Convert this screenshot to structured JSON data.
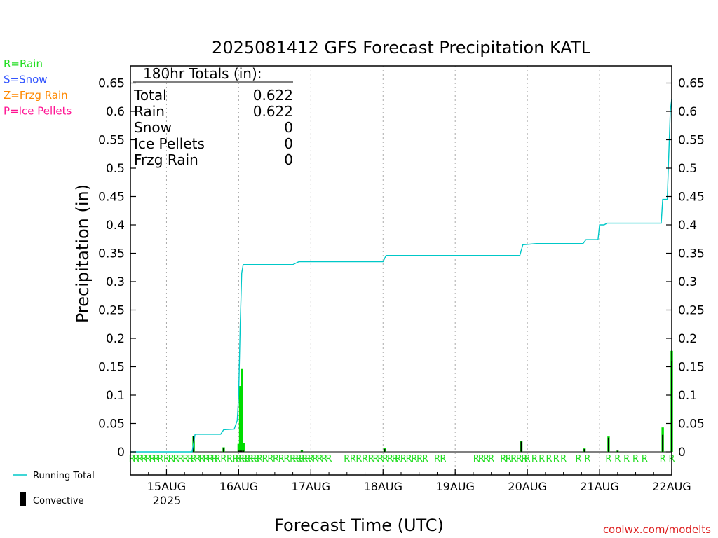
{
  "chart_data": {
    "type": "bar",
    "title": "2025081412 GFS Forecast Precipitation KATL",
    "xlabel": "Forecast Time (UTC)",
    "ylabel": "Precipitation (in)",
    "ylim": [
      0,
      0.68
    ],
    "yticks": [
      0,
      0.05,
      0.1,
      0.15,
      0.2,
      0.25,
      0.3,
      0.35,
      0.4,
      0.45,
      0.5,
      0.55,
      0.6,
      0.65
    ],
    "ytick_labels": [
      "0",
      "0.05",
      "0.1",
      "0.15",
      "0.2",
      "0.25",
      "0.3",
      "0.35",
      "0.4",
      "0.45",
      "0.5",
      "0.55",
      "0.6",
      "0.65"
    ],
    "x_range_hours": [
      0,
      180
    ],
    "x_ticks": [
      {
        "hour": 12,
        "label": "15AUG"
      },
      {
        "hour": 36,
        "label": "16AUG"
      },
      {
        "hour": 60,
        "label": "17AUG"
      },
      {
        "hour": 84,
        "label": "18AUG"
      },
      {
        "hour": 108,
        "label": "19AUG"
      },
      {
        "hour": 132,
        "label": "20AUG"
      },
      {
        "hour": 156,
        "label": "21AUG"
      },
      {
        "hour": 180,
        "label": "22AUG"
      }
    ],
    "year_label": "2025",
    "grid": "vertical dotted at day boundaries",
    "precip_bars": [
      {
        "hour": 21,
        "total": 0.028,
        "convective": 0.028
      },
      {
        "hour": 31,
        "total": 0.008,
        "convective": 0.006
      },
      {
        "hour": 36,
        "total": 0.014,
        "convective": 0.002
      },
      {
        "hour": 36.5,
        "total": 0.116,
        "convective": 0.002
      },
      {
        "hour": 37,
        "total": 0.146,
        "convective": 0.002
      },
      {
        "hour": 37.6,
        "total": 0.016,
        "convective": 0.002
      },
      {
        "hour": 57,
        "total": 0.003,
        "convective": 0.002
      },
      {
        "hour": 84.5,
        "total": 0.007,
        "convective": 0.005
      },
      {
        "hour": 130,
        "total": 0.019,
        "convective": 0.018
      },
      {
        "hour": 151,
        "total": 0.006,
        "convective": 0.005
      },
      {
        "hour": 159,
        "total": 0.027,
        "convective": 0.025
      },
      {
        "hour": 162,
        "total": 0.002,
        "convective": 0.002
      },
      {
        "hour": 177,
        "total": 0.043,
        "convective": 0.03
      },
      {
        "hour": 180,
        "total": 0.178,
        "convective": 0.16
      }
    ],
    "running_total": [
      [
        0,
        0
      ],
      [
        20.5,
        0
      ],
      [
        21.5,
        0.031
      ],
      [
        30,
        0.031
      ],
      [
        31,
        0.039
      ],
      [
        34.5,
        0.04
      ],
      [
        35.5,
        0.055
      ],
      [
        36,
        0.1
      ],
      [
        36.5,
        0.22
      ],
      [
        37,
        0.315
      ],
      [
        37.5,
        0.33
      ],
      [
        54,
        0.33
      ],
      [
        56,
        0.335
      ],
      [
        84,
        0.335
      ],
      [
        85,
        0.346
      ],
      [
        129.5,
        0.346
      ],
      [
        130.5,
        0.365
      ],
      [
        135,
        0.367
      ],
      [
        150.5,
        0.367
      ],
      [
        151.5,
        0.374
      ],
      [
        155.5,
        0.374
      ],
      [
        156,
        0.4
      ],
      [
        157.5,
        0.4
      ],
      [
        158.5,
        0.403
      ],
      [
        176.5,
        0.403
      ],
      [
        177,
        0.445
      ],
      [
        178.5,
        0.445
      ],
      [
        179.5,
        0.6
      ],
      [
        180,
        0.622
      ]
    ],
    "ptype_rows": [
      {
        "hour_start": 0.5,
        "hour_end": 10,
        "count": 8
      },
      {
        "hour_start": 12,
        "hour_end": 20,
        "count": 6
      },
      {
        "hour_start": 21,
        "hour_end": 28,
        "count": 6
      },
      {
        "hour_start": 29,
        "hour_end": 33,
        "count": 3
      },
      {
        "hour_start": 35,
        "hour_end": 42,
        "count": 8
      },
      {
        "hour_start": 43,
        "hour_end": 52,
        "count": 6
      },
      {
        "hour_start": 54,
        "hour_end": 59,
        "count": 6
      },
      {
        "hour_start": 60,
        "hour_end": 66,
        "count": 5
      },
      {
        "hour_start": 72,
        "hour_end": 78,
        "count": 4
      },
      {
        "hour_start": 80,
        "hour_end": 88,
        "count": 6
      },
      {
        "hour_start": 89,
        "hour_end": 98,
        "count": 6
      },
      {
        "hour_start": 102,
        "hour_end": 104,
        "count": 2
      },
      {
        "hour_start": 115,
        "hour_end": 120,
        "count": 4
      },
      {
        "hour_start": 124,
        "hour_end": 131,
        "count": 5
      },
      {
        "hour_start": 132,
        "hour_end": 144,
        "count": 6
      },
      {
        "hour_start": 149,
        "hour_end": 152,
        "count": 2
      },
      {
        "hour_start": 159,
        "hour_end": 171,
        "count": 5
      },
      {
        "hour_start": 177,
        "hour_end": 180,
        "count": 2
      }
    ],
    "ptype_letter": "R",
    "legend_ptypes": [
      {
        "text": "R=Rain",
        "color": "#22dd22"
      },
      {
        "text": "S=Snow",
        "color": "#3355ff"
      },
      {
        "text": "Z=Frzg Rain",
        "color": "#ff8800"
      },
      {
        "text": "P=Ice Pellets",
        "color": "#ff1493"
      }
    ],
    "legend_series": [
      {
        "name": "Running Total",
        "color": "#00c8c8"
      },
      {
        "name": "Convective",
        "color": "#000000"
      }
    ],
    "totals_box": {
      "header": "180hr Totals (in):",
      "rows": [
        {
          "label": "Total",
          "value": "0.622"
        },
        {
          "label": "Rain",
          "value": "0.622"
        },
        {
          "label": "Snow",
          "value": "0"
        },
        {
          "label": "Ice Pellets",
          "value": "0"
        },
        {
          "label": "Frzg Rain",
          "value": "0"
        }
      ]
    },
    "colors": {
      "precip_bar": "#00dd00",
      "convective_bar": "#000000",
      "running_total": "#00c8c8",
      "ptype_text": "#22dd22",
      "grid": "#aaaaaa",
      "axis": "#000000",
      "credit": "#dd2222"
    }
  },
  "credit": "coolwx.com/modelts"
}
